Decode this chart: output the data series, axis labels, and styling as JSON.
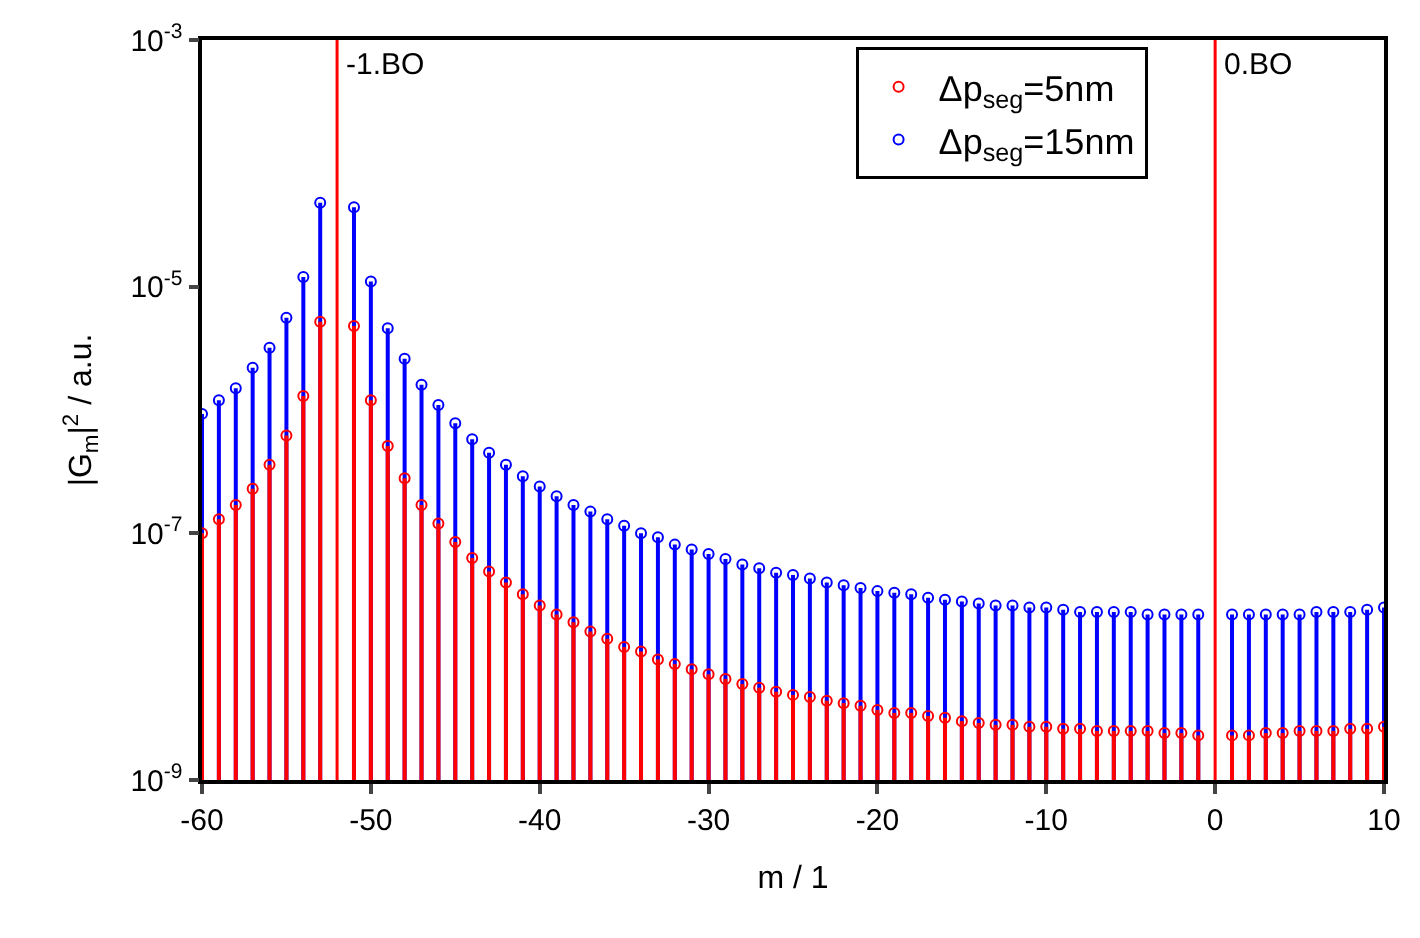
{
  "chart_data": {
    "type": "lollipop",
    "xlabel": "m / 1",
    "ylabel": "|G$_{m}$|$^{2}$ / a.u.",
    "x": [
      -60,
      -59,
      -58,
      -57,
      -56,
      -55,
      -54,
      -53,
      -52,
      -51,
      -50,
      -49,
      -48,
      -47,
      -46,
      -45,
      -44,
      -43,
      -42,
      -41,
      -40,
      -39,
      -38,
      -37,
      -36,
      -35,
      -34,
      -33,
      -32,
      -31,
      -30,
      -29,
      -28,
      -27,
      -26,
      -25,
      -24,
      -23,
      -22,
      -21,
      -20,
      -19,
      -18,
      -17,
      -16,
      -15,
      -14,
      -13,
      -12,
      -11,
      -10,
      -9,
      -8,
      -7,
      -6,
      -5,
      -4,
      -3,
      -2,
      -1,
      0,
      1,
      2,
      3,
      4,
      5,
      6,
      7,
      8,
      9,
      10
    ],
    "series": [
      {
        "name": "Δp$_{seg}$=15nm",
        "color": "#0000ff",
        "values": [
          9.3e-07,
          1.2e-06,
          1.5e-06,
          2.2e-06,
          3.2e-06,
          5.6e-06,
          1.2e-05,
          4.8e-05,
          null,
          4.4e-05,
          1.1e-05,
          4.6e-06,
          2.6e-06,
          1.6e-06,
          1.1e-06,
          7.8e-07,
          5.8e-07,
          4.5e-07,
          3.6e-07,
          2.9e-07,
          2.4e-07,
          2e-07,
          1.7e-07,
          1.5e-07,
          1.3e-07,
          1.15e-07,
          1e-07,
          9.3e-08,
          8.1e-08,
          7.4e-08,
          6.8e-08,
          6.2e-08,
          5.6e-08,
          5.2e-08,
          4.8e-08,
          4.6e-08,
          4.3e-08,
          4e-08,
          3.8e-08,
          3.6e-08,
          3.4e-08,
          3.3e-08,
          3.2e-08,
          3e-08,
          2.9e-08,
          2.8e-08,
          2.7e-08,
          2.6e-08,
          2.6e-08,
          2.5e-08,
          2.5e-08,
          2.4e-08,
          2.3e-08,
          2.3e-08,
          2.3e-08,
          2.3e-08,
          2.2e-08,
          2.2e-08,
          2.2e-08,
          2.2e-08,
          null,
          2.2e-08,
          2.2e-08,
          2.2e-08,
          2.2e-08,
          2.2e-08,
          2.3e-08,
          2.3e-08,
          2.3e-08,
          2.4e-08,
          2.5e-08
        ]
      },
      {
        "name": "Δp$_{seg}$=5nm",
        "color": "#ff0000",
        "values": [
          1e-07,
          1.3e-07,
          1.7e-07,
          2.3e-07,
          3.6e-07,
          6.2e-07,
          1.3e-06,
          5.2e-06,
          null,
          4.8e-06,
          1.2e-06,
          5.1e-07,
          2.8e-07,
          1.7e-07,
          1.2e-07,
          8.5e-08,
          6.3e-08,
          4.9e-08,
          4e-08,
          3.2e-08,
          2.6e-08,
          2.2e-08,
          1.9e-08,
          1.6e-08,
          1.4e-08,
          1.2e-08,
          1.1e-08,
          9.5e-09,
          8.7e-09,
          7.9e-09,
          7.2e-09,
          6.6e-09,
          6e-09,
          5.6e-09,
          5.2e-09,
          4.9e-09,
          4.7e-09,
          4.4e-09,
          4.2e-09,
          4e-09,
          3.7e-09,
          3.5e-09,
          3.5e-09,
          3.3e-09,
          3.2e-09,
          3e-09,
          2.9e-09,
          2.8e-09,
          2.8e-09,
          2.7e-09,
          2.7e-09,
          2.6e-09,
          2.6e-09,
          2.5e-09,
          2.5e-09,
          2.5e-09,
          2.5e-09,
          2.4e-09,
          2.4e-09,
          2.3e-09,
          null,
          2.3e-09,
          2.3e-09,
          2.4e-09,
          2.4e-09,
          2.5e-09,
          2.5e-09,
          2.5e-09,
          2.6e-09,
          2.6e-09,
          2.7e-09
        ]
      }
    ],
    "xlim": [
      -60,
      10
    ],
    "xticks": [
      -60,
      -50,
      -40,
      -30,
      -20,
      -10,
      0,
      10
    ],
    "ylim": [
      1e-09,
      0.001
    ],
    "yticks": [
      {
        "value": 1e-09,
        "label": "10$^{-9}$"
      },
      {
        "value": 1e-07,
        "label": "10$^{-7}$"
      },
      {
        "value": 1e-05,
        "label": "10$^{-5}$"
      },
      {
        "value": 0.001,
        "label": "10$^{-3}$"
      }
    ],
    "log": "y",
    "legend": "top right",
    "marker": "circle",
    "line_style": "solid",
    "ref_lines": [
      {
        "axis": "x",
        "value": -52,
        "label": "-1.BO",
        "color": "#ff0000"
      },
      {
        "axis": "x",
        "value": 0,
        "label": "0.BO",
        "color": "#ff0000"
      }
    ]
  }
}
